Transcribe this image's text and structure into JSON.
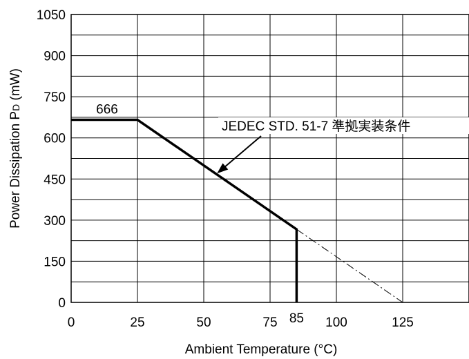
{
  "chart_data": {
    "type": "line",
    "title": "",
    "xlabel": "Ambient Temperature (°C)",
    "ylabel_main": "Power Dissipation P",
    "ylabel_sub": "D",
    "ylabel_unit": " (mW)",
    "xlim": [
      0,
      150
    ],
    "ylim": [
      0,
      1050
    ],
    "x_ticks": [
      0,
      25,
      50,
      75,
      100,
      125
    ],
    "y_ticks": [
      0,
      150,
      300,
      450,
      600,
      750,
      900,
      1050
    ],
    "x_gridlines": [
      0,
      25,
      50,
      75,
      100,
      125,
      150
    ],
    "y_gridlines": [
      0,
      75,
      150,
      225,
      300,
      375,
      450,
      525,
      600,
      675,
      750,
      825,
      900,
      975,
      1050
    ],
    "grid": true,
    "series": [
      {
        "style": "solid",
        "x": [
          0,
          25,
          85,
          85
        ],
        "y": [
          666,
          666,
          266.4,
          0
        ]
      },
      {
        "style": "dash-dot",
        "x": [
          85,
          125
        ],
        "y": [
          266.4,
          0
        ]
      }
    ],
    "annotations": {
      "value_666": {
        "text": "666",
        "x": 12.5,
        "y": 666
      },
      "value_85": {
        "text": "85",
        "x": 85,
        "y": 0
      },
      "condition": {
        "text": "JEDEC STD. 51-7  準拠実装条件",
        "points_to": {
          "x": 55,
          "y": 470
        }
      }
    }
  }
}
